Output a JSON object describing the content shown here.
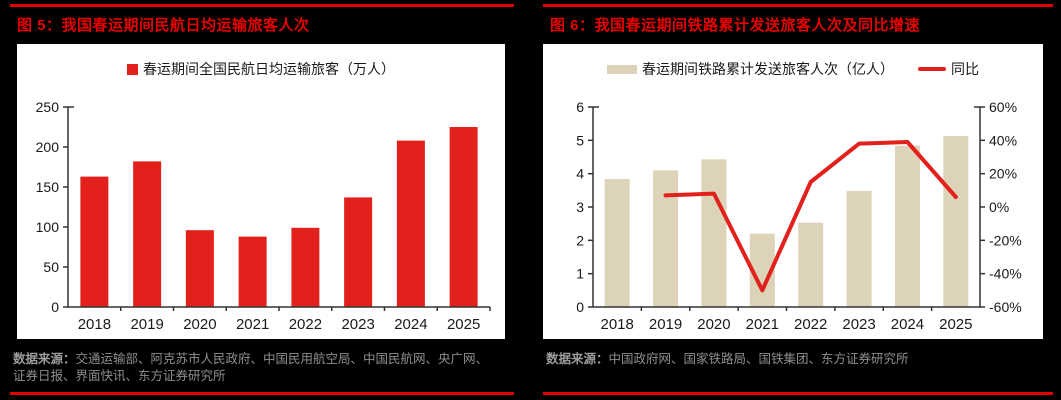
{
  "colors": {
    "page_background": "#000000",
    "rule_red": "#e60000",
    "title_red": "#e60000",
    "data_red": "#e2211c",
    "data_tan": "#ddd3b8",
    "axis": "#333333",
    "axis_text": "#1a1a1a",
    "source_gray": "#8f8f8f",
    "card_white": "#ffffff"
  },
  "figures": [
    {
      "title": "图 5：我国春运期间民航日均运输旅客人次",
      "source_label": "数据来源：",
      "source_text": "交通运输部、阿克苏市人民政府、中国民用航空局、中国民航网、央广网、证券日报、界面快讯、东方证券研究所"
    },
    {
      "title": "图 6：我国春运期间铁路累计发送旅客人次及同比增速",
      "source_label": "数据来源：",
      "source_text": "中国政府网、国家铁路局、国铁集团、东方证券研究所"
    }
  ],
  "chart_data": [
    {
      "type": "bar",
      "title": "图 5：我国春运期间民航日均运输旅客人次",
      "categories": [
        "2018",
        "2019",
        "2020",
        "2021",
        "2022",
        "2023",
        "2024",
        "2025"
      ],
      "series": [
        {
          "name": "春运期间全国民航日均运输旅客（万人）",
          "type": "bar",
          "swatch": "square",
          "color": "#e2211c",
          "axis": "left",
          "values": [
            163,
            182,
            96,
            88,
            99,
            137,
            208,
            225
          ]
        }
      ],
      "axes": {
        "left": {
          "min": 0,
          "max": 250,
          "step": 50,
          "suffix": ""
        }
      },
      "legend_position": "top",
      "grid": false
    },
    {
      "type": "bar+line",
      "title": "图 6：我国春运期间铁路累计发送旅客人次及同比增速",
      "categories": [
        "2018",
        "2019",
        "2020",
        "2021",
        "2022",
        "2023",
        "2024",
        "2025"
      ],
      "series": [
        {
          "name": "春运期间铁路累计发送旅客人次（亿人）",
          "type": "bar",
          "swatch": "rect",
          "color": "#ddd3b8",
          "axis": "left",
          "values": [
            3.84,
            4.1,
            4.43,
            2.2,
            2.53,
            3.48,
            4.84,
            5.13
          ]
        },
        {
          "name": "同比",
          "type": "line",
          "swatch": "line",
          "color": "#e2211c",
          "axis": "right",
          "unit": "%",
          "values": [
            null,
            7,
            8,
            -50,
            15,
            38,
            39,
            6
          ]
        }
      ],
      "axes": {
        "left": {
          "min": 0,
          "max": 6,
          "step": 1,
          "suffix": ""
        },
        "right": {
          "min": -60,
          "max": 60,
          "step": 20,
          "suffix": "%"
        }
      },
      "legend_position": "top",
      "grid": false
    }
  ]
}
